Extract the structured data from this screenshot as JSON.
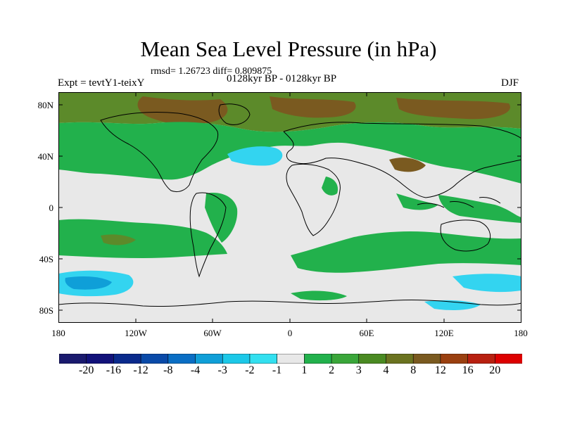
{
  "title": "Mean Sea Level Pressure (in hPa)",
  "stats": "rmsd= 1.26723  diff= 0.809875",
  "experiment": "Expt = tevtY1-teixY",
  "period": "0128kyr BP - 0128kyr BP",
  "season": "DJF",
  "map": {
    "lat_labels": [
      "80N",
      "40N",
      "0",
      "40S",
      "80S"
    ],
    "lon_labels": [
      "180",
      "120W",
      "60W",
      "0",
      "60E",
      "120E",
      "180"
    ],
    "colors": {
      "ocean_neutral": "#e8e8e8",
      "green_1_2": "#22b14c",
      "green_2_3": "#3aa63a",
      "olive_3_4": "#5c8a2a",
      "brown_4_8": "#7a5a20",
      "cyan_neg": "#33d4f0",
      "blue_neg": "#0f9fd8"
    }
  },
  "colorbar": {
    "labels": [
      "-20",
      "-16",
      "-12",
      "-8",
      "-4",
      "-3",
      "-2",
      "-1",
      "1",
      "2",
      "3",
      "4",
      "8",
      "12",
      "16",
      "20"
    ],
    "colors": [
      "#1a1a6e",
      "#12127a",
      "#0a2a8c",
      "#0a4aa8",
      "#0a6ec4",
      "#109fd8",
      "#1cc8e8",
      "#33e0f0",
      "#e8e8e8",
      "#22b14c",
      "#3aa63a",
      "#4a8a22",
      "#6b7320",
      "#7a5a20",
      "#9a4010",
      "#b82010",
      "#dd0000"
    ]
  }
}
